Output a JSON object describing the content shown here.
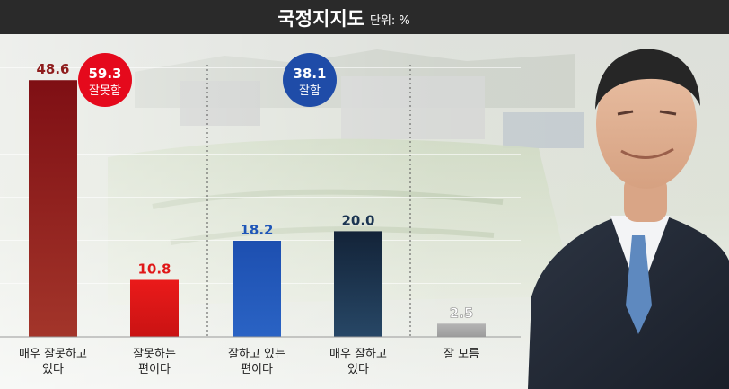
{
  "header": {
    "title": "국정지지도",
    "unit": "단위: %"
  },
  "summary": {
    "negative": {
      "value": "59.3",
      "label": "잘못함",
      "color": "#e5091c"
    },
    "positive": {
      "value": "38.1",
      "label": "잘함",
      "color": "#1f4ca8"
    }
  },
  "colors": {
    "bar_dark_red": "#8e1c1c",
    "bar_red": "#e01818",
    "bar_blue": "#1f56b8",
    "bar_navy": "#1c3552",
    "bar_gray": "#a8a8a8"
  },
  "chart_data": {
    "type": "bar",
    "title": "국정지지도",
    "unit": "단위: %",
    "categories": [
      [
        "매우 잘못하고",
        "있다"
      ],
      [
        "잘못하는",
        "편이다"
      ],
      [
        "잘하고 있는",
        "편이다"
      ],
      [
        "매우 잘하고",
        "있다"
      ],
      [
        "잘 모름"
      ]
    ],
    "values": [
      48.6,
      10.8,
      18.2,
      20.0,
      2.5
    ],
    "value_labels": [
      "48.6",
      "10.8",
      "18.2",
      "20.0",
      "2.5"
    ],
    "ylim": [
      0,
      50
    ],
    "grid": false,
    "legend": "none"
  }
}
